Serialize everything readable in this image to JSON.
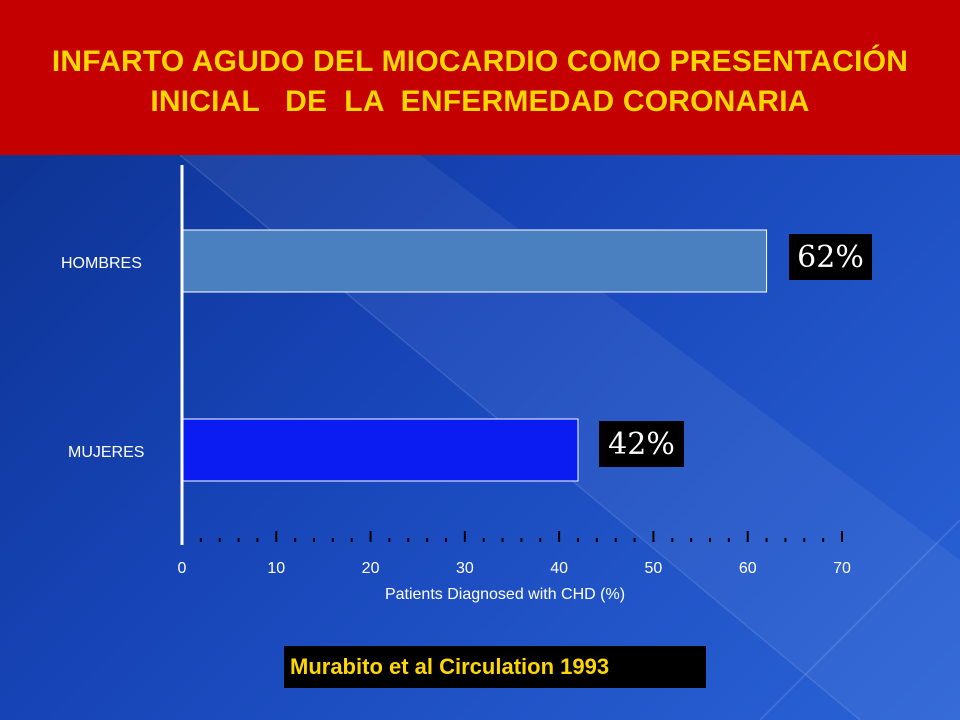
{
  "slide": {
    "title_line1": "INFARTO AGUDO DEL MIOCARDIO COMO PRESENTACIÓN",
    "title_line2": "INICIAL   DE  LA  ENFERMEDAD CORONARIA",
    "citation": "Murabito  et al Circulation 1993"
  },
  "colors": {
    "header_bg": "#c40000",
    "title_text": "#ffd700",
    "citation_text": "#ffd700",
    "bar_hombres": "#4a7fc0",
    "bar_mujeres": "#0a1cf2"
  },
  "chart_data": {
    "type": "bar",
    "orientation": "horizontal",
    "categories": [
      "HOMBRES",
      "MUJERES"
    ],
    "values": [
      62,
      42
    ],
    "value_labels": [
      "62%",
      "42%"
    ],
    "xlabel": "Patients Diagnosed with CHD (%)",
    "ylabel": "",
    "xlim": [
      0,
      70
    ],
    "x_ticks": [
      "0",
      "10",
      "20",
      "30",
      "40",
      "50",
      "60",
      "70"
    ],
    "grid": false
  }
}
